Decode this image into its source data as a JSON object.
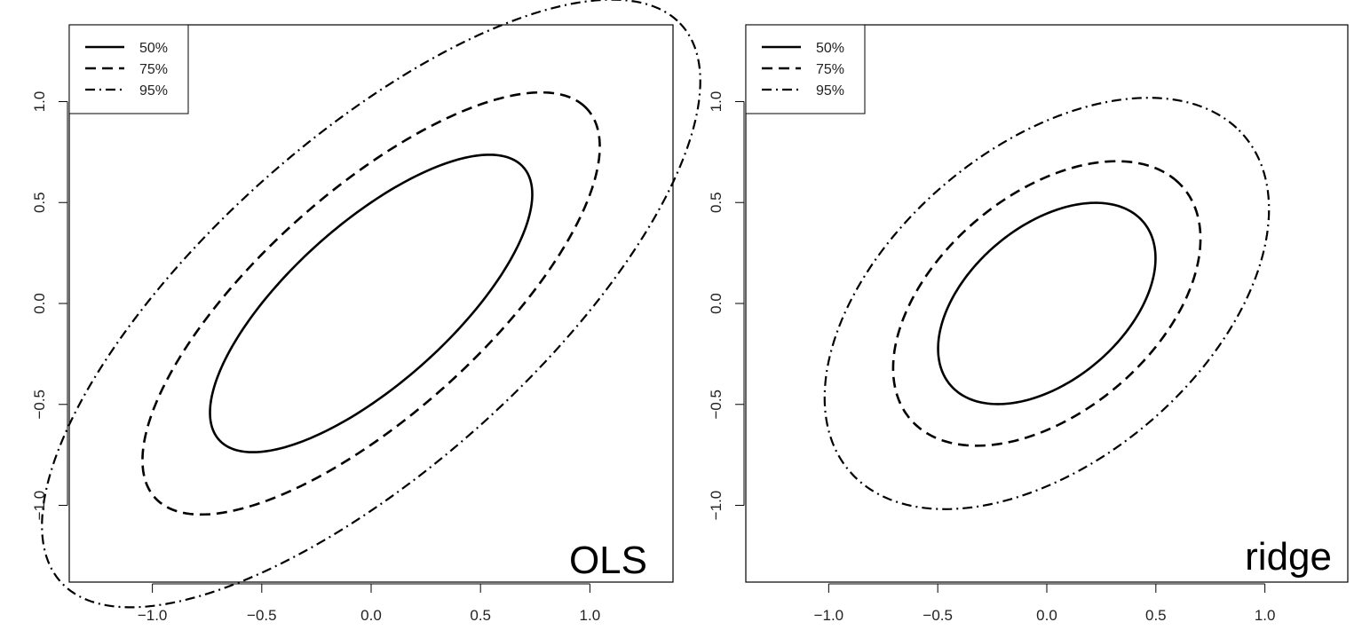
{
  "chart_data": [
    {
      "type": "line",
      "panel_label": "OLS",
      "xlim": [
        -1.38,
        1.38
      ],
      "ylim": [
        -1.38,
        1.38
      ],
      "xticks": [
        -1.0,
        -0.5,
        0.0,
        0.5,
        1.0
      ],
      "xtick_labels": [
        "−1.0",
        "−0.5",
        "0.0",
        "0.5",
        "1.0"
      ],
      "yticks": [
        -1.0,
        -0.5,
        0.0,
        0.5,
        1.0
      ],
      "ytick_labels": [
        "−1.0",
        "−0.5",
        "0.0",
        "0.5",
        "1.0"
      ],
      "grid": false,
      "legend_position": "top-left",
      "legend": [
        {
          "label": "50%",
          "style": "solid"
        },
        {
          "label": "75%",
          "style": "dashed"
        },
        {
          "label": "95%",
          "style": "dashdot"
        }
      ],
      "series": [
        {
          "style": "solid",
          "center": [
            0,
            0
          ],
          "tilt_deg": 45,
          "semi_major": 0.97,
          "semi_minor": 0.38
        },
        {
          "style": "dashed",
          "center": [
            0,
            0
          ],
          "tilt_deg": 45,
          "semi_major": 1.38,
          "semi_minor": 0.53
        },
        {
          "style": "dashdot",
          "center": [
            0,
            0
          ],
          "tilt_deg": 45,
          "semi_major": 1.98,
          "semi_minor": 0.78
        }
      ]
    },
    {
      "type": "line",
      "panel_label": "ridge",
      "xlim": [
        -1.38,
        1.38
      ],
      "ylim": [
        -1.38,
        1.38
      ],
      "xticks": [
        -1.0,
        -0.5,
        0.0,
        0.5,
        1.0
      ],
      "xtick_labels": [
        "−1.0",
        "−0.5",
        "0.0",
        "0.5",
        "1.0"
      ],
      "yticks": [
        -1.0,
        -0.5,
        0.0,
        0.5,
        1.0
      ],
      "ytick_labels": [
        "−1.0",
        "−0.5",
        "0.0",
        "0.5",
        "1.0"
      ],
      "grid": false,
      "legend_position": "top-left",
      "legend": [
        {
          "label": "50%",
          "style": "solid"
        },
        {
          "label": "75%",
          "style": "dashed"
        },
        {
          "label": "95%",
          "style": "dashdot"
        }
      ],
      "series": [
        {
          "style": "solid",
          "center": [
            0,
            0
          ],
          "tilt_deg": 45,
          "semi_major": 0.6,
          "semi_minor": 0.37
        },
        {
          "style": "dashed",
          "center": [
            0,
            0
          ],
          "tilt_deg": 45,
          "semi_major": 0.85,
          "semi_minor": 0.52
        },
        {
          "style": "dashdot",
          "center": [
            0,
            0
          ],
          "tilt_deg": 45,
          "semi_major": 1.23,
          "semi_minor": 0.75
        }
      ]
    }
  ]
}
